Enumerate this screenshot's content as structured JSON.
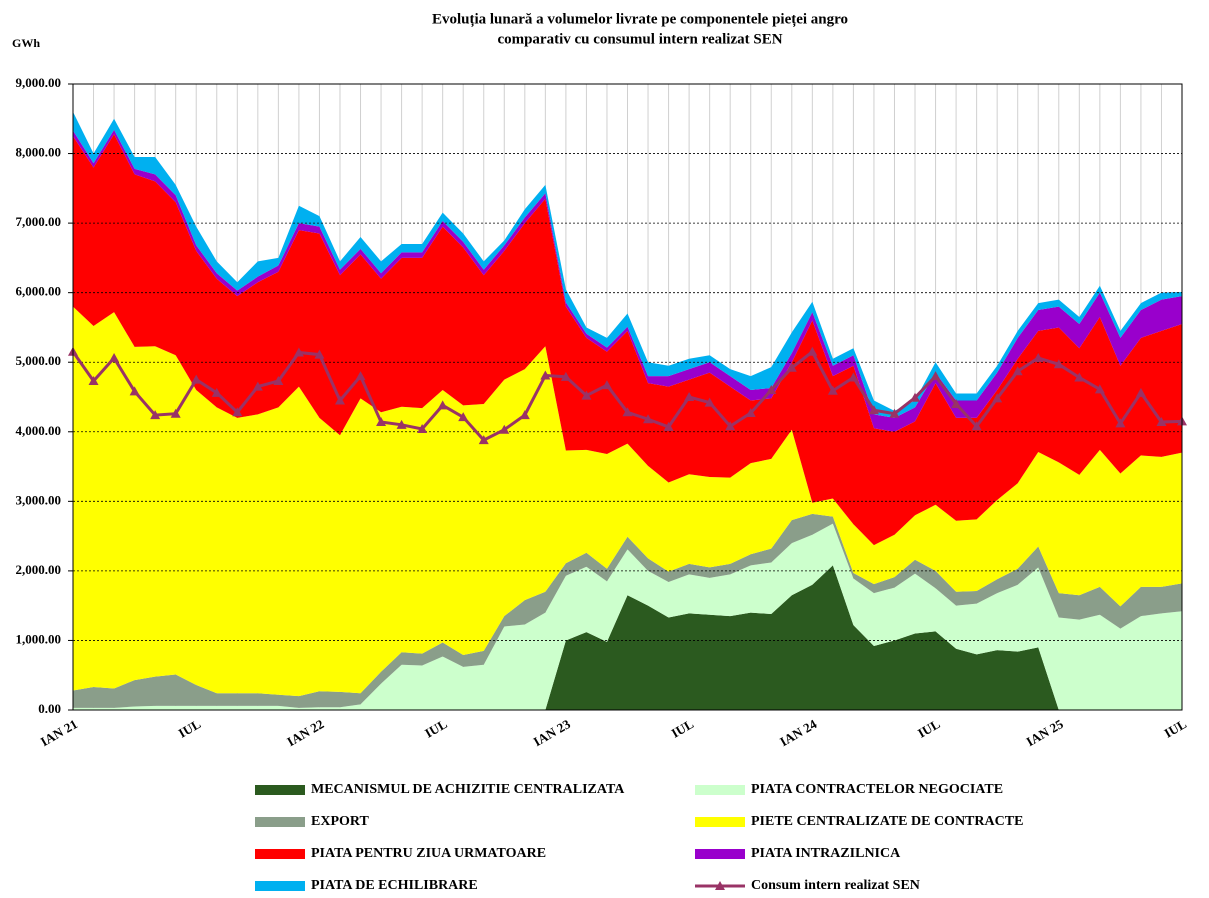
{
  "chart_data": {
    "type": "stacked-area-line",
    "title": [
      "Evoluția lunară a volumelor livrate pe componentele pieței angro",
      "comparativ cu consumul intern realizat SEN"
    ],
    "y_unit": "GWh",
    "categories": [
      "IAN 21",
      null,
      null,
      null,
      null,
      null,
      "IUL",
      null,
      null,
      null,
      null,
      null,
      "IAN 22",
      null,
      null,
      null,
      null,
      null,
      "IUL",
      null,
      null,
      null,
      null,
      null,
      "IAN 23",
      null,
      null,
      null,
      null,
      null,
      "IUL",
      null,
      null,
      null,
      null,
      null,
      "IAN 24",
      null,
      null,
      null,
      null,
      null,
      "IUL",
      null,
      null,
      null,
      null,
      null,
      "IAN 25",
      null,
      null,
      null,
      null,
      null,
      "IUL"
    ],
    "ylim": [
      0,
      9000
    ],
    "yticks": [
      {
        "value": 0,
        "label": "0.00"
      },
      {
        "value": 1000,
        "label": "1,000.00"
      },
      {
        "value": 2000,
        "label": "2,000.00"
      },
      {
        "value": 3000,
        "label": "3,000.00"
      },
      {
        "value": 4000,
        "label": "4,000.00"
      },
      {
        "value": 5000,
        "label": "5,000.00"
      },
      {
        "value": 6000,
        "label": "6,000.00"
      },
      {
        "value": 7000,
        "label": "7,000.00"
      },
      {
        "value": 8000,
        "label": "8,000.00"
      },
      {
        "value": 9000,
        "label": "9,000.00"
      }
    ],
    "grid": true,
    "series": [
      {
        "name": "MECANISMUL DE ACHIZITIE CENTRALIZATA",
        "color": "#2b5a1f",
        "values": [
          0,
          0,
          0,
          0,
          0,
          0,
          0,
          0,
          0,
          0,
          0,
          0,
          0,
          0,
          0,
          0,
          0,
          0,
          0,
          0,
          0,
          0,
          0,
          0,
          1000,
          1120,
          980,
          1650,
          1500,
          1330,
          1390,
          1370,
          1350,
          1400,
          1380,
          1650,
          1800,
          2080,
          1220,
          920,
          1000,
          1100,
          1130,
          880,
          800,
          860,
          840,
          900,
          0,
          0,
          0,
          0,
          0,
          0,
          0
        ]
      },
      {
        "name": "PIATA CONTRACTELOR NEGOCIATE",
        "color": "#ccffcc",
        "values": [
          30,
          30,
          30,
          50,
          60,
          60,
          60,
          60,
          60,
          60,
          60,
          30,
          40,
          40,
          80,
          380,
          650,
          640,
          770,
          620,
          650,
          1200,
          1230,
          1400,
          930,
          940,
          870,
          660,
          500,
          510,
          560,
          530,
          600,
          680,
          740,
          750,
          720,
          600,
          670,
          760,
          760,
          860,
          620,
          620,
          730,
          820,
          960,
          1150,
          1330,
          1300,
          1370,
          1170,
          1350,
          1390,
          1420
        ]
      },
      {
        "name": "EXPORT",
        "color": "#8a9e8a",
        "values": [
          250,
          300,
          280,
          380,
          420,
          450,
          300,
          180,
          180,
          180,
          160,
          170,
          230,
          220,
          160,
          170,
          180,
          170,
          200,
          170,
          200,
          150,
          350,
          300,
          180,
          200,
          180,
          180,
          180,
          150,
          150,
          150,
          150,
          160,
          200,
          330,
          300,
          100,
          80,
          130,
          150,
          200,
          250,
          200,
          180,
          200,
          230,
          300,
          350,
          350,
          400,
          320,
          420,
          380,
          400
        ]
      },
      {
        "name": "PIETE CENTRALIZATE DE CONTRACTE",
        "color": "#ffff00",
        "values": [
          5520,
          5190,
          5410,
          4790,
          4750,
          4590,
          4240,
          4110,
          3960,
          4010,
          4130,
          4450,
          3930,
          3690,
          4240,
          3730,
          3530,
          3530,
          3630,
          3590,
          3550,
          3400,
          3320,
          3530,
          1620,
          1480,
          1650,
          1340,
          1330,
          1280,
          1290,
          1300,
          1240,
          1310,
          1290,
          1300,
          160,
          260,
          700,
          560,
          610,
          640,
          950,
          1020,
          1030,
          1140,
          1230,
          1360,
          1880,
          1730,
          1970,
          1910,
          1890,
          1870,
          1880
        ]
      },
      {
        "name": "PIATA PENTRU ZIUA URMATOARE",
        "color": "#ff0000",
        "values": [
          2450,
          2280,
          2560,
          2480,
          2370,
          2200,
          2000,
          1850,
          1750,
          1900,
          1950,
          2250,
          2650,
          2300,
          2070,
          1920,
          2140,
          2160,
          2350,
          2270,
          1850,
          1850,
          2100,
          2120,
          2070,
          1610,
          1470,
          1620,
          1190,
          1380,
          1360,
          1500,
          1310,
          900,
          870,
          970,
          2620,
          1760,
          2280,
          1680,
          1480,
          1350,
          1750,
          1480,
          1460,
          1580,
          1790,
          1740,
          1940,
          1820,
          1910,
          1550,
          1690,
          1810,
          1850
        ]
      },
      {
        "name": "PIATA INTRAZILNICA",
        "color": "#9900cc",
        "values": [
          80,
          60,
          60,
          80,
          100,
          100,
          80,
          80,
          80,
          80,
          90,
          100,
          100,
          80,
          80,
          80,
          80,
          80,
          80,
          80,
          80,
          80,
          80,
          80,
          60,
          60,
          60,
          60,
          100,
          150,
          150,
          150,
          150,
          150,
          150,
          130,
          120,
          150,
          150,
          200,
          200,
          200,
          150,
          250,
          250,
          250,
          300,
          300,
          300,
          350,
          350,
          400,
          400,
          450,
          400
        ]
      },
      {
        "name": "PIATA DE ECHILIBRARE",
        "color": "#00b0f0",
        "values": [
          270,
          140,
          160,
          170,
          250,
          150,
          270,
          170,
          120,
          220,
          110,
          250,
          150,
          120,
          170,
          170,
          120,
          120,
          120,
          120,
          120,
          70,
          120,
          120,
          190,
          90,
          140,
          190,
          200,
          150,
          150,
          100,
          100,
          200,
          300,
          300,
          150,
          100,
          100,
          200,
          100,
          100,
          150,
          100,
          100,
          100,
          100,
          100,
          100,
          100,
          100,
          100,
          100,
          100,
          60
        ]
      },
      {
        "name": "Consum intern realizat SEN",
        "color": "#993366",
        "kind": "line",
        "values": [
          5150,
          4730,
          5060,
          4580,
          4240,
          4260,
          4750,
          4560,
          4280,
          4650,
          4730,
          5140,
          5110,
          4450,
          4800,
          4140,
          4100,
          4040,
          4380,
          4210,
          3880,
          4030,
          4240,
          4810,
          4790,
          4520,
          4670,
          4280,
          4180,
          4070,
          4500,
          4420,
          4080,
          4270,
          4600,
          4920,
          5150,
          4590,
          4780,
          4310,
          4260,
          4490,
          4800,
          4400,
          4080,
          4480,
          4870,
          5060,
          4970,
          4780,
          4610,
          4120,
          4560,
          4140,
          4150
        ]
      }
    ]
  }
}
